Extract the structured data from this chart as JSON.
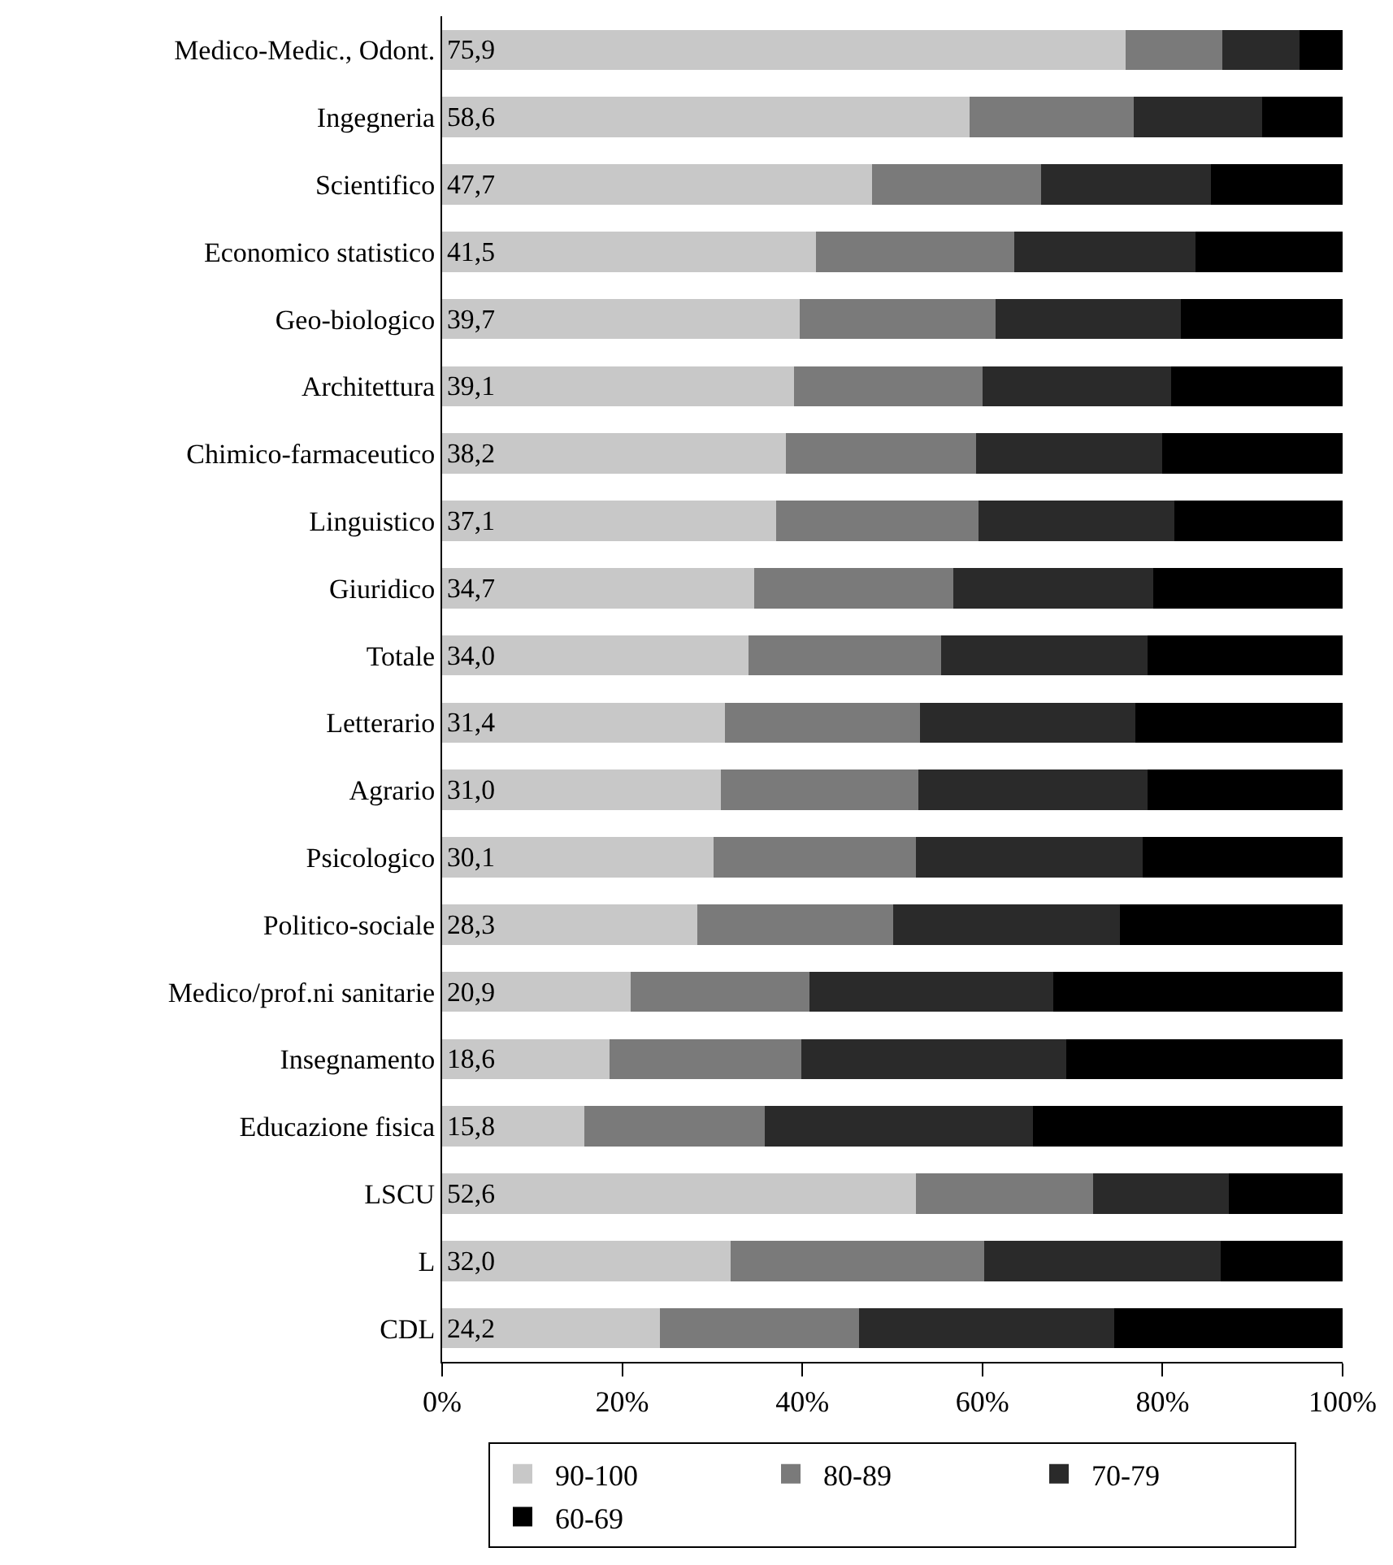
{
  "chart_data": {
    "type": "bar",
    "orientation": "horizontal",
    "stacked": true,
    "categories": [
      "Medico-Medic., Odont.",
      "Ingegneria",
      "Scientifico",
      "Economico statistico",
      "Geo-biologico",
      "Architettura",
      "Chimico-farmaceutico",
      "Linguistico",
      "Giuridico",
      "Totale",
      "Letterario",
      "Agrario",
      "Psicologico",
      "Politico-sociale",
      "Medico/prof.ni sanitarie",
      "Insegnamento",
      "Educazione fisica",
      "LSCU",
      "L",
      "CDL"
    ],
    "series": [
      {
        "name": "90-100",
        "color": "#c8c8c8",
        "values": [
          75.9,
          58.6,
          47.7,
          41.5,
          39.7,
          39.1,
          38.2,
          37.1,
          34.7,
          34.0,
          31.4,
          31.0,
          30.1,
          28.3,
          20.9,
          18.6,
          15.8,
          52.6,
          32.0,
          24.2
        ],
        "value_labels": [
          "75,9",
          "58,6",
          "47,7",
          "41,5",
          "39,7",
          "39,1",
          "38,2",
          "37,1",
          "34,7",
          "34,0",
          "31,4",
          "31,0",
          "30,1",
          "28,3",
          "20,9",
          "18,6",
          "15,8",
          "52,6",
          "32,0",
          "24,2"
        ]
      },
      {
        "name": "80-89",
        "color": "#7a7a7a",
        "values": [
          10.7,
          18.2,
          18.8,
          22.0,
          21.8,
          20.9,
          21.1,
          22.5,
          22.1,
          21.4,
          21.7,
          21.9,
          22.5,
          21.8,
          19.9,
          21.3,
          20.0,
          19.7,
          28.2,
          22.1
        ]
      },
      {
        "name": "70-79",
        "color": "#2a2a2a",
        "values": [
          8.6,
          14.3,
          18.9,
          20.2,
          20.5,
          21.0,
          20.7,
          21.7,
          22.2,
          22.9,
          23.9,
          25.4,
          25.2,
          25.2,
          27.1,
          29.4,
          29.8,
          15.1,
          26.3,
          28.3
        ]
      },
      {
        "name": "60-69",
        "color": "#000000",
        "values": [
          4.8,
          8.9,
          14.6,
          16.3,
          18.0,
          19.0,
          20.0,
          18.7,
          21.0,
          21.7,
          23.0,
          21.7,
          22.2,
          24.7,
          32.1,
          30.7,
          34.4,
          12.6,
          13.5,
          25.4
        ]
      }
    ],
    "xlim": [
      0,
      100
    ],
    "xticks": [
      {
        "value": 0,
        "label": "0%"
      },
      {
        "value": 20,
        "label": "20%"
      },
      {
        "value": 40,
        "label": "40%"
      },
      {
        "value": 60,
        "label": "60%"
      },
      {
        "value": 80,
        "label": "80%"
      },
      {
        "value": 100,
        "label": "100%"
      }
    ],
    "grid": false,
    "legend": "bottom"
  }
}
